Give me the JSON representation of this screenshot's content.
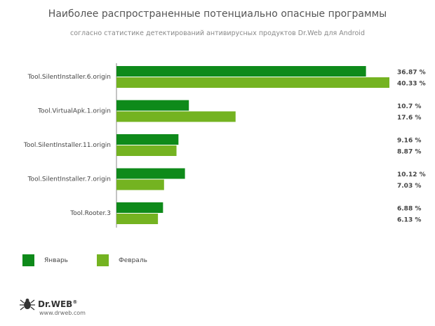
{
  "chart_data": {
    "type": "bar",
    "orientation": "horizontal",
    "title": "Наиболее распространенные потенциально опасные программы",
    "subtitle": "согласно статистике детектирований антивирусных продуктов Dr.Web для Android",
    "categories": [
      "Tool.SilentInstaller.6.origin",
      "Tool.VirtualApk.1.origin",
      "Tool.SilentInstaller.11.origin",
      "Tool.SilentInstaller.7.origin",
      "Tool.Rooter.3"
    ],
    "series": [
      {
        "name": "Январь",
        "color": "#0e8a1a",
        "values": [
          36.87,
          10.7,
          9.16,
          10.12,
          6.88
        ],
        "labels": [
          "36.87 %",
          "10.7 %",
          "9.16 %",
          "10.12 %",
          "6.88 %"
        ]
      },
      {
        "name": "Февраль",
        "color": "#74b321",
        "values": [
          40.33,
          17.6,
          8.87,
          7.03,
          6.13
        ],
        "labels": [
          "40.33 %",
          "17.6 %",
          "8.87 %",
          "7.03 %",
          "6.13 %"
        ]
      }
    ],
    "xlim": [
      0,
      40.33
    ],
    "grid": false,
    "legend_position": "bottom-left"
  },
  "branding": {
    "logo_text": "Dr.WEB",
    "registered_mark": "®",
    "website": "www.drweb.com"
  },
  "colors": {
    "january": "#0e8a1a",
    "february": "#74b321"
  }
}
